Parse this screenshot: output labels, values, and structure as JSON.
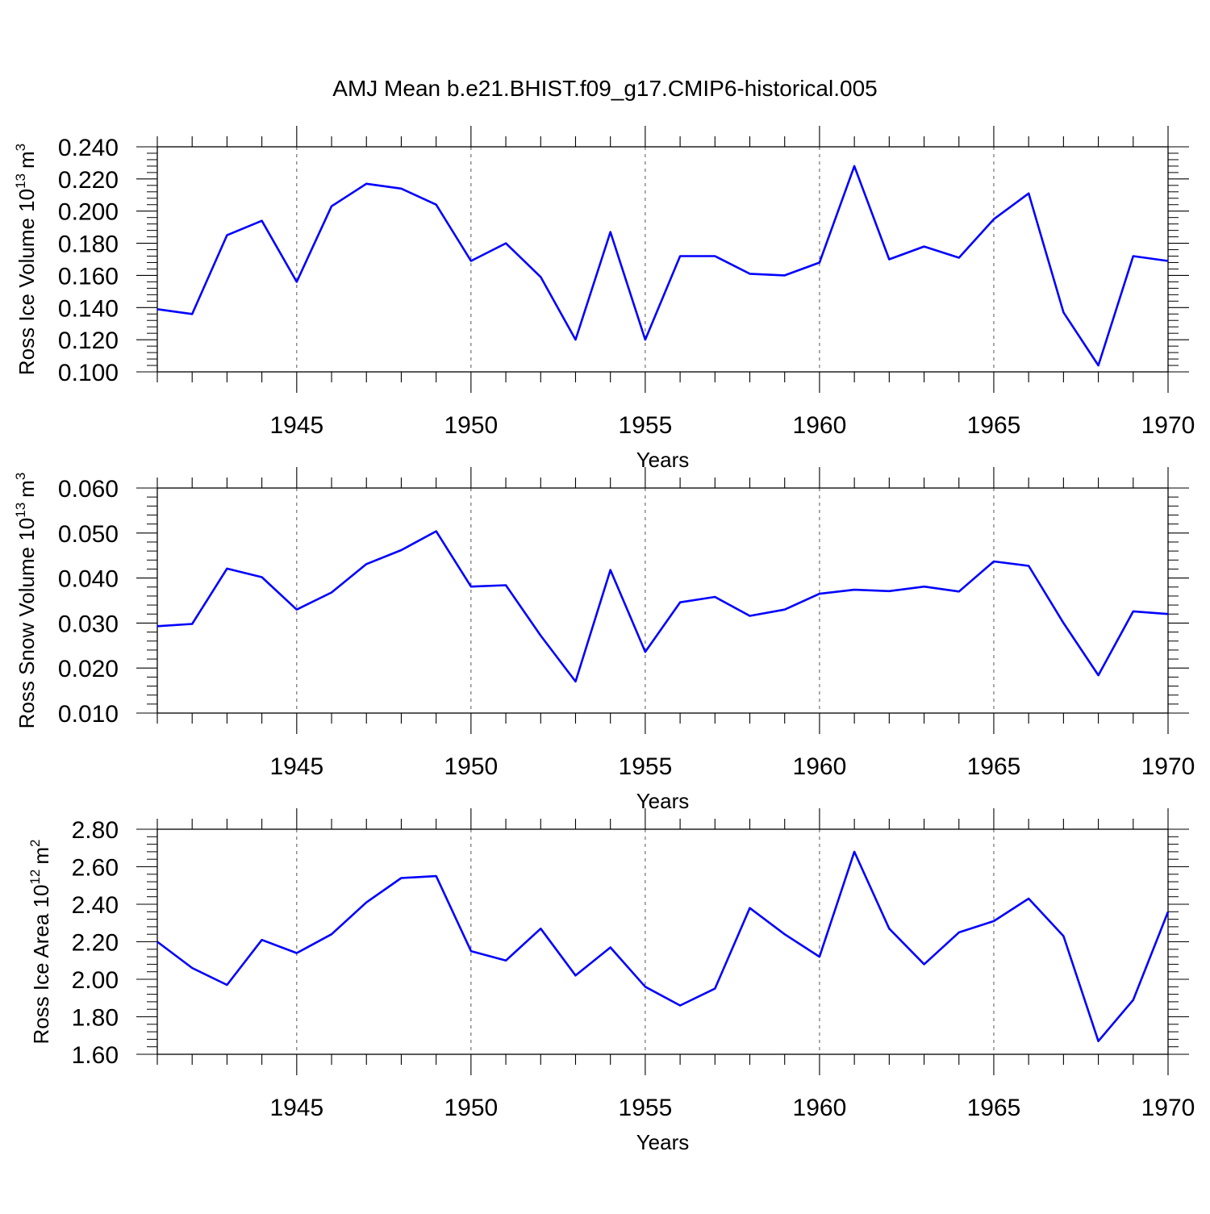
{
  "title": "AMJ Mean b.e21.BHIST.f09_g17.CMIP6-historical.005",
  "colors": {
    "line": "#0000ff",
    "axis": "#000000",
    "grid": "#555555"
  },
  "chart_data": [
    {
      "type": "line",
      "ylabel": {
        "text": "Ross Ice Volume 10",
        "sup": "13",
        "unit": "m",
        "unit_sup": "3"
      },
      "xlabel": "Years",
      "xlim": [
        1941,
        1970
      ],
      "ylim": [
        0.1,
        0.24
      ],
      "yticks": [
        "0.100",
        "0.120",
        "0.140",
        "0.160",
        "0.180",
        "0.200",
        "0.220",
        "0.240"
      ],
      "xticks": [
        "1945",
        "1950",
        "1955",
        "1960",
        "1965",
        "1970"
      ],
      "grid": "vertical dashed at labeled years",
      "x": [
        1941,
        1942,
        1943,
        1944,
        1945,
        1946,
        1947,
        1948,
        1949,
        1950,
        1951,
        1952,
        1953,
        1954,
        1955,
        1956,
        1957,
        1958,
        1959,
        1960,
        1961,
        1962,
        1963,
        1964,
        1965,
        1966,
        1967,
        1968,
        1969,
        1970
      ],
      "values": [
        0.139,
        0.136,
        0.185,
        0.194,
        0.156,
        0.203,
        0.217,
        0.214,
        0.204,
        0.169,
        0.18,
        0.159,
        0.12,
        0.187,
        0.12,
        0.172,
        0.172,
        0.161,
        0.16,
        0.168,
        0.228,
        0.17,
        0.178,
        0.171,
        0.195,
        0.211,
        0.137,
        0.104,
        0.172,
        0.169
      ]
    },
    {
      "type": "line",
      "ylabel": {
        "text": "Ross Snow Volume 10",
        "sup": "13",
        "unit": "m",
        "unit_sup": "3"
      },
      "xlabel": "Years",
      "xlim": [
        1941,
        1970
      ],
      "ylim": [
        0.01,
        0.06
      ],
      "yticks": [
        "0.010",
        "0.020",
        "0.030",
        "0.040",
        "0.050",
        "0.060"
      ],
      "xticks": [
        "1945",
        "1950",
        "1955",
        "1960",
        "1965",
        "1970"
      ],
      "grid": "vertical dashed at labeled years",
      "x": [
        1941,
        1942,
        1943,
        1944,
        1945,
        1946,
        1947,
        1948,
        1949,
        1950,
        1951,
        1952,
        1953,
        1954,
        1955,
        1956,
        1957,
        1958,
        1959,
        1960,
        1961,
        1962,
        1963,
        1964,
        1965,
        1966,
        1967,
        1968,
        1969,
        1970
      ],
      "values": [
        0.0293,
        0.0298,
        0.0421,
        0.0402,
        0.033,
        0.0368,
        0.0431,
        0.0462,
        0.0504,
        0.0381,
        0.0384,
        0.0272,
        0.017,
        0.0418,
        0.0236,
        0.0346,
        0.0358,
        0.0316,
        0.033,
        0.0365,
        0.0374,
        0.0371,
        0.0381,
        0.037,
        0.0437,
        0.0427,
        0.03,
        0.0184,
        0.0326,
        0.032
      ]
    },
    {
      "type": "line",
      "ylabel": {
        "text": "Ross Ice Area 10",
        "sup": "12",
        "unit": "m",
        "unit_sup": "2"
      },
      "xlabel": "Years",
      "xlim": [
        1941,
        1970
      ],
      "ylim": [
        1.6,
        2.8
      ],
      "yticks": [
        "1.60",
        "1.80",
        "2.00",
        "2.20",
        "2.40",
        "2.60",
        "2.80"
      ],
      "xticks": [
        "1945",
        "1950",
        "1955",
        "1960",
        "1965",
        "1970"
      ],
      "grid": "vertical dashed at labeled years",
      "x": [
        1941,
        1942,
        1943,
        1944,
        1945,
        1946,
        1947,
        1948,
        1949,
        1950,
        1951,
        1952,
        1953,
        1954,
        1955,
        1956,
        1957,
        1958,
        1959,
        1960,
        1961,
        1962,
        1963,
        1964,
        1965,
        1966,
        1967,
        1968,
        1969,
        1970
      ],
      "values": [
        2.2,
        2.06,
        1.97,
        2.21,
        2.14,
        2.24,
        2.41,
        2.54,
        2.55,
        2.15,
        2.1,
        2.27,
        2.02,
        2.17,
        1.96,
        1.86,
        1.95,
        2.38,
        2.24,
        2.12,
        2.68,
        2.27,
        2.08,
        2.25,
        2.31,
        2.43,
        2.23,
        1.67,
        1.89,
        2.36
      ]
    }
  ]
}
